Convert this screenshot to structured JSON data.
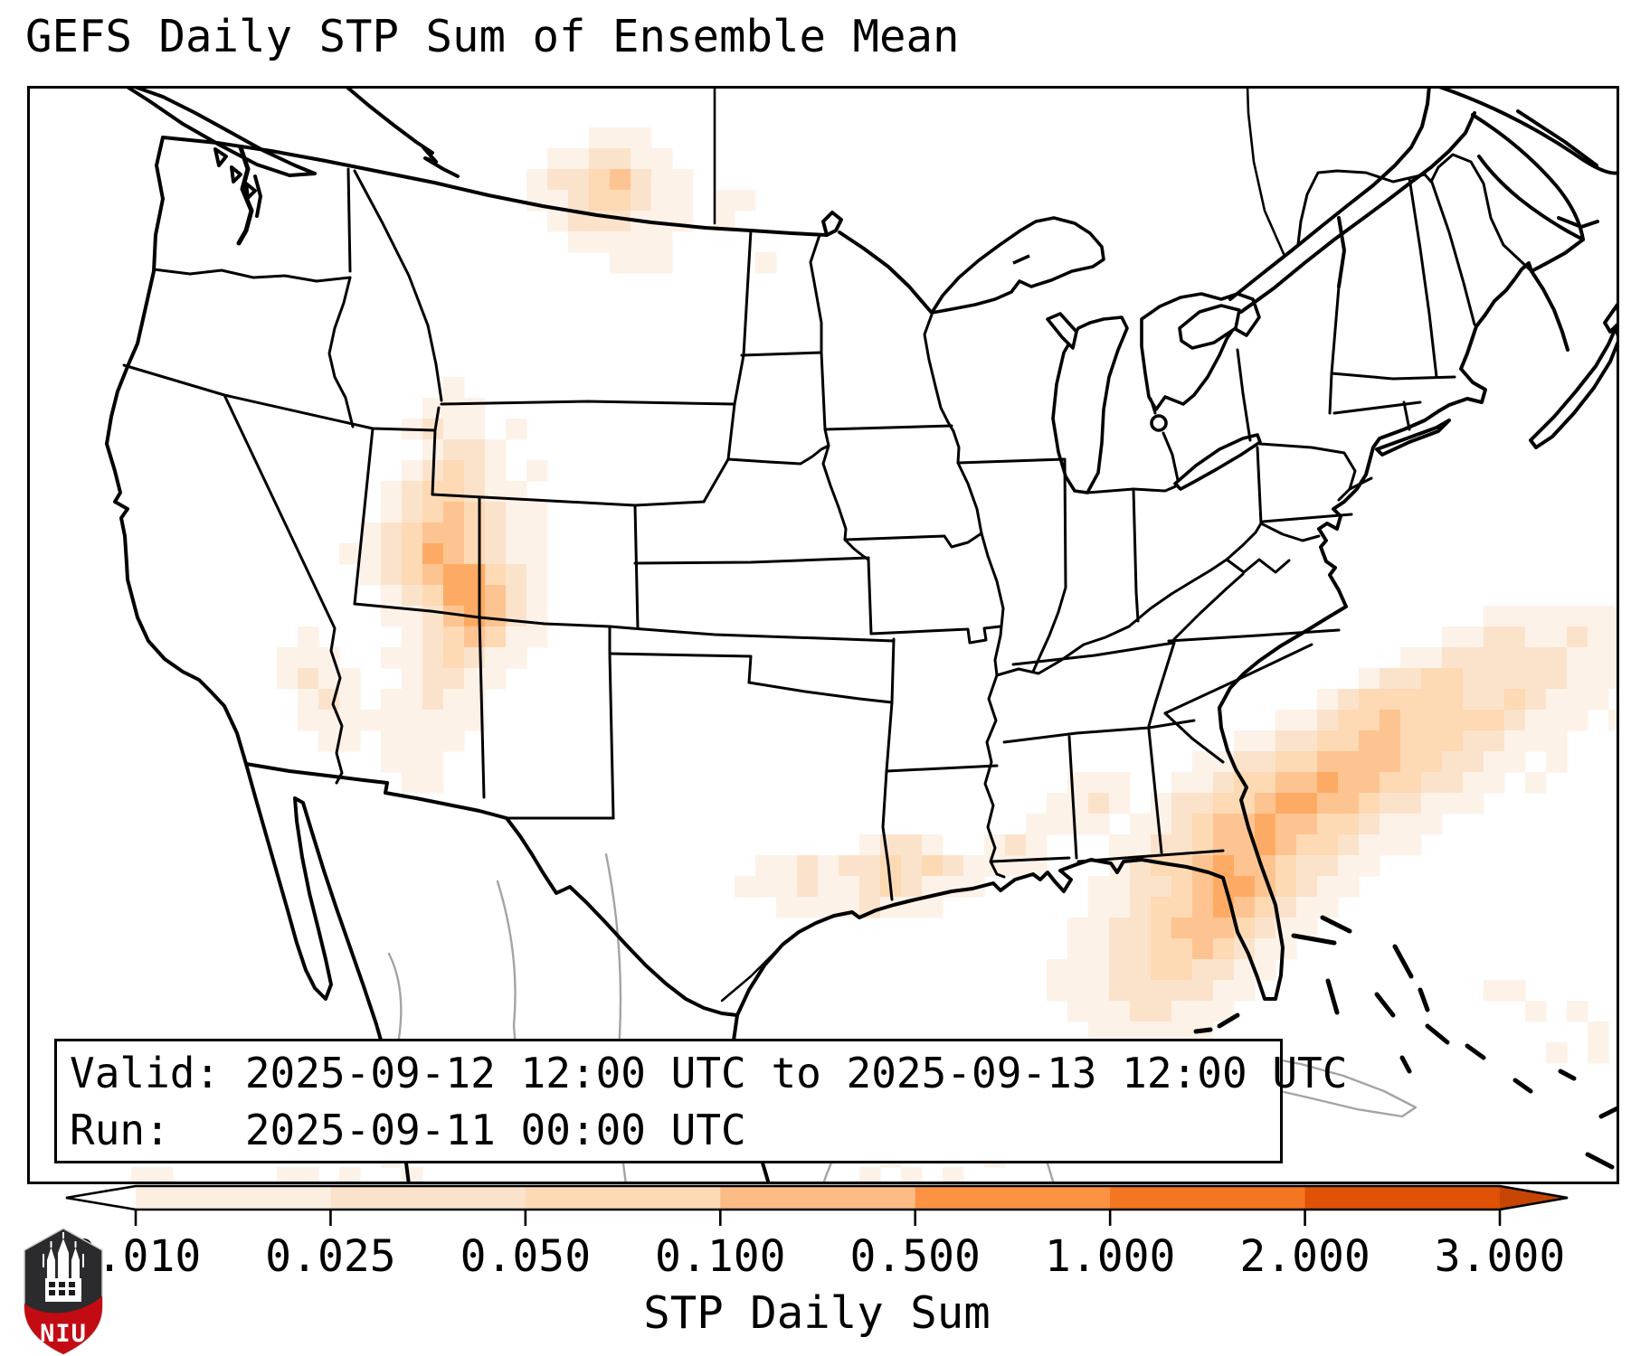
{
  "title": "GEFS Daily STP Sum of Ensemble Mean",
  "info_box": {
    "valid_line": "Valid: 2025-09-12 12:00 UTC to 2025-09-13 12:00 UTC",
    "run_line": "Run:   2025-09-11 00:00 UTC"
  },
  "colorbar": {
    "label": "STP Daily Sum",
    "tick_labels": [
      "0.010",
      "0.025",
      "0.050",
      "0.100",
      "0.500",
      "1.000",
      "2.000",
      "3.000"
    ],
    "segment_colors": [
      "#fcefe2",
      "#fbe3cb",
      "#fdd9b4",
      "#fdbc85",
      "#fd9243",
      "#f57620",
      "#e05206"
    ],
    "under_color": "#ffffff",
    "over_color": "#c64502",
    "outline_color": "#000000"
  },
  "logo": {
    "text": "NIU",
    "shield_dark": "#2b2a2c",
    "shield_red": "#c20b12"
  },
  "chart_data": {
    "type": "heatmap",
    "title": "GEFS Daily STP Sum of Ensemble Mean",
    "variable": "STP Daily Sum",
    "bin_edges": [
      0.01,
      0.025,
      0.05,
      0.1,
      0.5,
      1.0,
      2.0,
      3.0
    ],
    "cell_size_px": 23,
    "level_colors": [
      "#fdf2e8",
      "#fbe3cb",
      "#fdd9b4",
      "#fdc491",
      "#fdab64"
    ],
    "regions": [
      {
        "name": "northern-plains-mt-nd",
        "rows": [
          [
            2,
            27,
            [
              1,
              1,
              1
            ]
          ],
          [
            3,
            25,
            [
              1,
              1,
              2,
              2,
              1,
              1
            ]
          ],
          [
            4,
            24,
            [
              1,
              2,
              2,
              3,
              4,
              2,
              1,
              1
            ]
          ],
          [
            5,
            24,
            [
              1,
              1,
              2,
              3,
              3,
              2,
              1,
              1
            ]
          ],
          [
            6,
            25,
            [
              1,
              2,
              2,
              2,
              1,
              1,
              1
            ]
          ],
          [
            7,
            26,
            [
              1,
              1,
              1,
              1,
              1
            ]
          ],
          [
            8,
            28,
            [
              1,
              1,
              1
            ]
          ]
        ],
        "cells": [
          [
            33,
            5,
            1
          ],
          [
            34,
            5,
            1
          ],
          [
            33,
            6,
            1
          ],
          [
            35,
            8,
            1
          ]
        ]
      },
      {
        "name": "four-corners-ut-co-nm",
        "rows": [
          [
            14,
            20,
            [
              1
            ]
          ],
          [
            15,
            19,
            [
              1,
              1,
              1
            ]
          ],
          [
            16,
            18,
            [
              1,
              2,
              1,
              1
            ]
          ],
          [
            17,
            19,
            [
              1,
              2,
              2,
              1
            ]
          ],
          [
            18,
            18,
            [
              1,
              2,
              3,
              2,
              1
            ]
          ],
          [
            19,
            17,
            [
              1,
              2,
              3,
              3,
              2,
              1,
              1
            ]
          ],
          [
            20,
            17,
            [
              1,
              2,
              3,
              4,
              3,
              2,
              1,
              1
            ]
          ],
          [
            21,
            16,
            [
              1,
              2,
              3,
              4,
              4,
              3,
              2,
              1,
              1
            ]
          ],
          [
            22,
            15,
            [
              1,
              1,
              2,
              3,
              5,
              4,
              3,
              2,
              1,
              1
            ]
          ],
          [
            23,
            16,
            [
              1,
              2,
              3,
              4,
              5,
              5,
              3,
              2,
              1
            ]
          ],
          [
            24,
            17,
            [
              1,
              2,
              3,
              5,
              5,
              4,
              2,
              1
            ]
          ],
          [
            25,
            17,
            [
              1,
              1,
              2,
              4,
              5,
              4,
              2,
              1
            ]
          ],
          [
            26,
            18,
            [
              1,
              2,
              3,
              4,
              3,
              1,
              1
            ]
          ],
          [
            27,
            17,
            [
              1,
              1,
              2,
              3,
              2,
              1,
              1
            ]
          ],
          [
            28,
            18,
            [
              1,
              2,
              2,
              1,
              1
            ]
          ],
          [
            29,
            17,
            [
              1,
              1,
              2,
              1,
              1
            ]
          ],
          [
            30,
            18,
            [
              1,
              1,
              1,
              1
            ]
          ],
          [
            31,
            18,
            [
              1,
              1,
              1
            ]
          ],
          [
            32,
            19,
            [
              1
            ]
          ]
        ],
        "cells": [
          [
            23,
            16,
            1
          ],
          [
            24,
            18,
            1
          ],
          [
            24,
            20,
            1
          ]
        ]
      },
      {
        "name": "arizona-sonora-west-texas",
        "rows": [
          [
            27,
            12,
            [
              1,
              1,
              1
            ]
          ],
          [
            28,
            12,
            [
              1,
              2,
              1,
              1
            ]
          ],
          [
            29,
            13,
            [
              1,
              2,
              1
            ]
          ],
          [
            30,
            13,
            [
              1,
              1,
              1,
              1
            ]
          ],
          [
            31,
            14,
            [
              1,
              1
            ]
          ]
        ],
        "cells": [
          [
            13,
            26,
            1
          ],
          [
            17,
            30,
            1
          ],
          [
            17,
            31,
            1
          ],
          [
            17,
            32,
            1
          ],
          [
            18,
            32,
            1
          ],
          [
            18,
            33,
            1
          ],
          [
            19,
            33,
            1
          ]
        ]
      },
      {
        "name": "gulf-coast",
        "rows": [
          [
            36,
            40,
            [
              1,
              2,
              2,
              1
            ]
          ],
          [
            37,
            35,
            [
              1,
              1,
              2,
              1,
              2,
              2,
              3,
              2,
              3,
              2,
              1,
              1,
              1,
              1
            ]
          ],
          [
            38,
            34,
            [
              1,
              1,
              1,
              2,
              1,
              1,
              2,
              3,
              2,
              1,
              1,
              1
            ]
          ],
          [
            39,
            36,
            [
              1,
              1,
              1,
              1,
              2,
              1,
              1,
              1
            ]
          ]
        ],
        "cells": [
          [
            46,
            36,
            1
          ],
          [
            47,
            36,
            2
          ],
          [
            48,
            36,
            1
          ]
        ]
      },
      {
        "name": "southeast-inland",
        "rows": [
          [
            33,
            50,
            [
              1,
              1,
              1
            ]
          ],
          [
            34,
            49,
            [
              1,
              1,
              2,
              1
            ]
          ],
          [
            35,
            48,
            [
              1,
              1,
              1,
              1
            ]
          ]
        ],
        "cells": []
      },
      {
        "name": "florida-atlantic-swath",
        "rows": [
          [
            25,
            70,
            [
              1,
              1,
              1,
              1,
              1,
              1,
              1
            ]
          ],
          [
            26,
            68,
            [
              1,
              1,
              2,
              2,
              1,
              1,
              2,
              1,
              1
            ]
          ],
          [
            27,
            66,
            [
              1,
              1,
              2,
              2,
              2,
              2,
              2,
              2,
              1,
              1,
              1
            ]
          ],
          [
            28,
            64,
            [
              1,
              2,
              2,
              3,
              3,
              2,
              2,
              2,
              2,
              2,
              1,
              1,
              1
            ]
          ],
          [
            29,
            62,
            [
              1,
              2,
              3,
              3,
              3,
              3,
              3,
              2,
              2,
              3,
              2,
              1,
              1,
              1
            ]
          ],
          [
            30,
            60,
            [
              1,
              1,
              2,
              3,
              3,
              4,
              3,
              3,
              3,
              3,
              3,
              2,
              1,
              1,
              1
            ]
          ],
          [
            31,
            58,
            [
              1,
              1,
              2,
              2,
              3,
              3,
              4,
              4,
              3,
              3,
              3,
              2,
              2,
              1,
              1,
              1
            ]
          ],
          [
            32,
            56,
            [
              1,
              1,
              2,
              2,
              3,
              3,
              4,
              4,
              4,
              4,
              3,
              3,
              2,
              2,
              1,
              1
            ]
          ],
          [
            33,
            55,
            [
              1,
              1,
              2,
              3,
              3,
              4,
              4,
              5,
              4,
              4,
              3,
              3,
              2,
              2,
              1,
              1
            ]
          ],
          [
            34,
            54,
            [
              1,
              2,
              2,
              3,
              3,
              4,
              5,
              5,
              4,
              4,
              3,
              2,
              2,
              1,
              1,
              1
            ]
          ],
          [
            35,
            53,
            [
              1,
              1,
              2,
              3,
              4,
              4,
              5,
              4,
              4,
              3,
              3,
              2,
              1,
              1,
              1
            ]
          ],
          [
            36,
            52,
            [
              1,
              1,
              2,
              2,
              3,
              4,
              4,
              5,
              4,
              3,
              3,
              2,
              1,
              1,
              1
            ]
          ],
          [
            37,
            52,
            [
              1,
              2,
              3,
              3,
              4,
              5,
              4,
              4,
              3,
              2,
              2,
              1,
              1
            ]
          ],
          [
            38,
            51,
            [
              1,
              1,
              2,
              2,
              3,
              4,
              5,
              5,
              4,
              3,
              2,
              1,
              1
            ]
          ],
          [
            39,
            51,
            [
              1,
              1,
              2,
              3,
              3,
              4,
              5,
              4,
              3,
              2,
              1,
              1
            ]
          ],
          [
            40,
            50,
            [
              1,
              1,
              2,
              2,
              3,
              4,
              4,
              4,
              3,
              2,
              1,
              1
            ]
          ],
          [
            41,
            50,
            [
              1,
              1,
              2,
              2,
              3,
              3,
              4,
              3,
              2,
              1,
              1
            ]
          ],
          [
            42,
            49,
            [
              1,
              1,
              1,
              2,
              2,
              3,
              3,
              2,
              2,
              1,
              1
            ]
          ],
          [
            43,
            49,
            [
              1,
              1,
              1,
              2,
              2,
              2,
              2,
              2,
              1,
              1
            ]
          ],
          [
            44,
            50,
            [
              1,
              1,
              1,
              2,
              2,
              1,
              1,
              1
            ]
          ],
          [
            45,
            51,
            [
              1,
              1,
              1,
              1,
              1,
              1
            ]
          ]
        ],
        "cells": [
          [
            76,
            30,
            1
          ],
          [
            73,
            32,
            1
          ],
          [
            72,
            33,
            1
          ]
        ]
      },
      {
        "name": "bahamas-cuba-fringe",
        "rows": [],
        "cells": [
          [
            70,
            43,
            1
          ],
          [
            71,
            43,
            1
          ],
          [
            72,
            44,
            1
          ],
          [
            74,
            44,
            1
          ],
          [
            75,
            45,
            1
          ],
          [
            73,
            46,
            1
          ],
          [
            75,
            46,
            1
          ]
        ]
      },
      {
        "name": "south-edge",
        "rows": [],
        "cells": [
          [
            5,
            52,
            1
          ],
          [
            6,
            52,
            1
          ],
          [
            12,
            52,
            1
          ],
          [
            13,
            52,
            1
          ],
          [
            15,
            52,
            1
          ],
          [
            17,
            51,
            1
          ],
          [
            18,
            52,
            1
          ],
          [
            40,
            52,
            1
          ],
          [
            41,
            51,
            1
          ],
          [
            42,
            52,
            1
          ],
          [
            44,
            52,
            1
          ],
          [
            46,
            51,
            1
          ]
        ]
      }
    ]
  }
}
